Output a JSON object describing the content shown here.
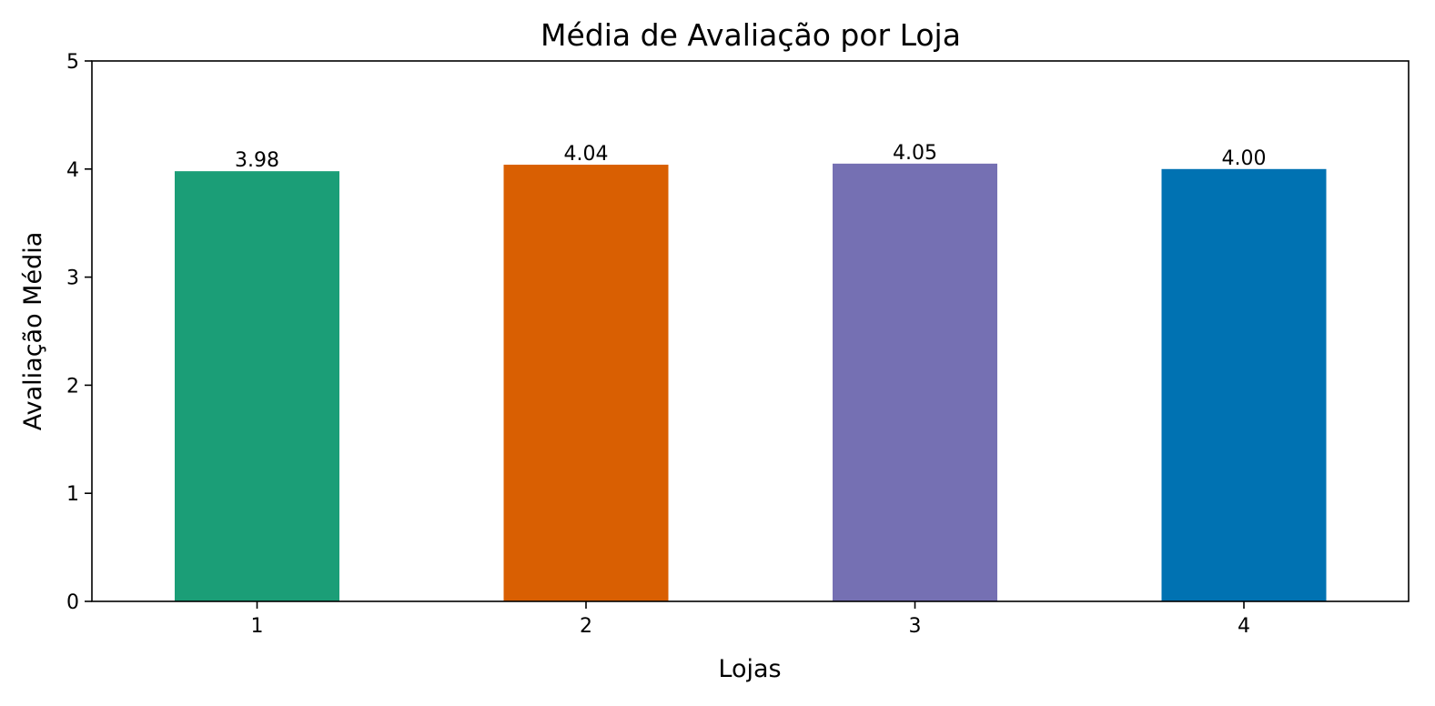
{
  "chart_data": {
    "type": "bar",
    "title": "Média de Avaliação por Loja",
    "xlabel": "Lojas",
    "ylabel": "Avaliação Média",
    "categories": [
      "1",
      "2",
      "3",
      "4"
    ],
    "values": [
      3.98,
      4.04,
      4.05,
      4.0
    ],
    "data_labels": [
      "3.98",
      "4.04",
      "4.05",
      "4.00"
    ],
    "colors": [
      "#1b9e77",
      "#d95f02",
      "#7570b3",
      "#0072b2"
    ],
    "ylim": [
      0,
      5
    ],
    "yticks": [
      0,
      1,
      2,
      3,
      4,
      5
    ],
    "ytick_labels": [
      "0",
      "1",
      "2",
      "3",
      "4",
      "5"
    ],
    "grid": false,
    "legend": "none"
  }
}
